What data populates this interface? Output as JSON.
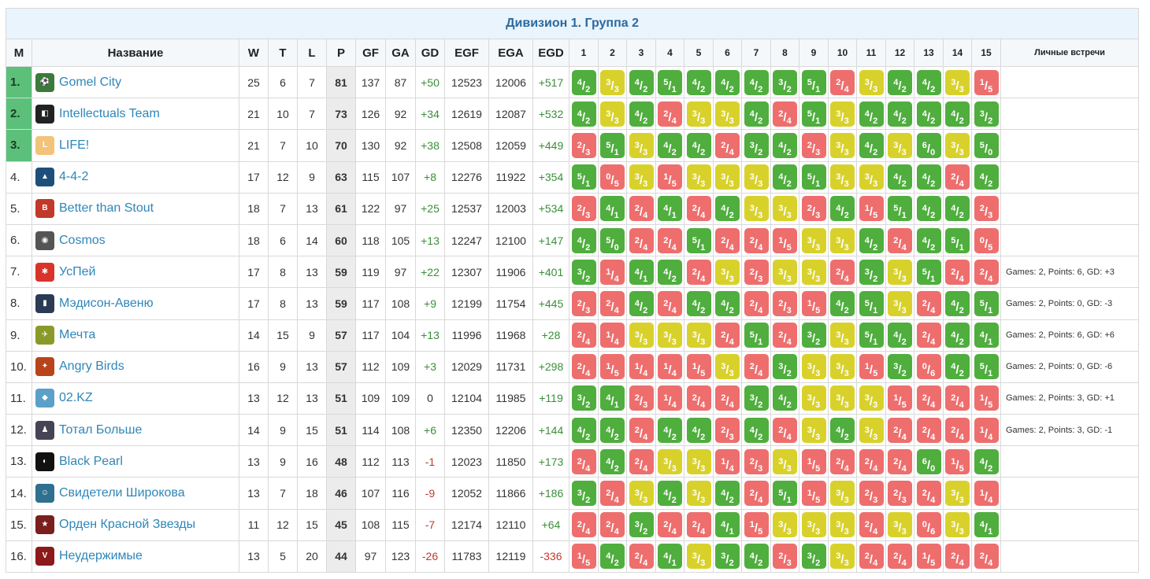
{
  "title": "Дивизион 1. Группа 2",
  "headers": {
    "m": "М",
    "name": "Название",
    "w": "W",
    "t": "T",
    "l": "L",
    "p": "P",
    "gf": "GF",
    "ga": "GA",
    "gd": "GD",
    "egf": "EGF",
    "ega": "EGA",
    "egd": "EGD",
    "rounds": [
      "1",
      "2",
      "3",
      "4",
      "5",
      "6",
      "7",
      "8",
      "9",
      "10",
      "11",
      "12",
      "13",
      "14",
      "15"
    ],
    "h2h": "Личные встречи"
  },
  "colors": {
    "win": "#4fae3e",
    "draw": "#d9d12b",
    "loss": "#ee6e6e",
    "top": "#5cc07a",
    "link": "#2f86b8"
  },
  "rows": [
    {
      "pos": "1.",
      "name": "Gomel City",
      "icon": "gomel-city-logo",
      "w": "25",
      "t": "6",
      "l": "7",
      "p": "81",
      "gf": "137",
      "ga": "87",
      "gd": "+50",
      "egf": "12523",
      "ega": "12006",
      "egd": "+517",
      "results": [
        "4/2",
        "3/3",
        "4/2",
        "5/1",
        "4/2",
        "4/2",
        "4/2",
        "3/2",
        "5/1",
        "2/4",
        "3/3",
        "4/2",
        "4/2",
        "3/3",
        "1/5"
      ],
      "h2h": ""
    },
    {
      "pos": "2.",
      "name": "Intellectuals Team",
      "icon": "intellectuals-team-logo",
      "w": "21",
      "t": "10",
      "l": "7",
      "p": "73",
      "gf": "126",
      "ga": "92",
      "gd": "+34",
      "egf": "12619",
      "ega": "12087",
      "egd": "+532",
      "results": [
        "4/2",
        "3/3",
        "4/2",
        "2/4",
        "3/3",
        "3/3",
        "4/2",
        "2/4",
        "5/1",
        "3/3",
        "4/2",
        "4/2",
        "4/2",
        "4/2",
        "3/2"
      ],
      "h2h": ""
    },
    {
      "pos": "3.",
      "name": "LIFE!",
      "icon": "life-logo",
      "w": "21",
      "t": "7",
      "l": "10",
      "p": "70",
      "gf": "130",
      "ga": "92",
      "gd": "+38",
      "egf": "12508",
      "ega": "12059",
      "egd": "+449",
      "results": [
        "2/3",
        "5/1",
        "3/3",
        "4/2",
        "4/2",
        "2/4",
        "3/2",
        "4/2",
        "2/3",
        "3/3",
        "4/2",
        "3/3",
        "6/0",
        "3/3",
        "5/0"
      ],
      "h2h": ""
    },
    {
      "pos": "4.",
      "name": "4-4-2",
      "icon": "442-logo",
      "w": "17",
      "t": "12",
      "l": "9",
      "p": "63",
      "gf": "115",
      "ga": "107",
      "gd": "+8",
      "egf": "12276",
      "ega": "11922",
      "egd": "+354",
      "results": [
        "5/1",
        "0/5",
        "3/3",
        "1/5",
        "3/3",
        "3/3",
        "3/3",
        "4/2",
        "5/1",
        "3/3",
        "3/3",
        "4/2",
        "4/2",
        "2/4",
        "4/2"
      ],
      "h2h": ""
    },
    {
      "pos": "5.",
      "name": "Better than Stout",
      "icon": "better-than-stout-logo",
      "w": "18",
      "t": "7",
      "l": "13",
      "p": "61",
      "gf": "122",
      "ga": "97",
      "gd": "+25",
      "egf": "12537",
      "ega": "12003",
      "egd": "+534",
      "results": [
        "2/3",
        "4/1",
        "2/4",
        "4/1",
        "2/4",
        "4/2",
        "3/3",
        "3/3",
        "2/3",
        "4/2",
        "1/5",
        "5/1",
        "4/2",
        "4/2",
        "2/3"
      ],
      "h2h": ""
    },
    {
      "pos": "6.",
      "name": "Cosmos",
      "icon": "cosmos-logo",
      "w": "18",
      "t": "6",
      "l": "14",
      "p": "60",
      "gf": "118",
      "ga": "105",
      "gd": "+13",
      "egf": "12247",
      "ega": "12100",
      "egd": "+147",
      "results": [
        "4/2",
        "5/0",
        "2/4",
        "2/4",
        "5/1",
        "2/4",
        "2/4",
        "1/5",
        "3/3",
        "3/3",
        "4/2",
        "2/4",
        "4/2",
        "5/1",
        "0/5"
      ],
      "h2h": ""
    },
    {
      "pos": "7.",
      "name": "УсПей",
      "icon": "uspey-logo",
      "w": "17",
      "t": "8",
      "l": "13",
      "p": "59",
      "gf": "119",
      "ga": "97",
      "gd": "+22",
      "egf": "12307",
      "ega": "11906",
      "egd": "+401",
      "results": [
        "3/2",
        "1/4",
        "4/1",
        "4/2",
        "2/4",
        "3/3",
        "2/3",
        "3/3",
        "3/3",
        "2/4",
        "3/2",
        "3/3",
        "5/1",
        "2/4",
        "2/4"
      ],
      "h2h": "Games: 2, Points: 6, GD: +3"
    },
    {
      "pos": "8.",
      "name": "Мэдисон-Авеню",
      "icon": "madison-avenue-logo",
      "w": "17",
      "t": "8",
      "l": "13",
      "p": "59",
      "gf": "117",
      "ga": "108",
      "gd": "+9",
      "egf": "12199",
      "ega": "11754",
      "egd": "+445",
      "results": [
        "2/3",
        "2/4",
        "4/2",
        "2/4",
        "4/2",
        "4/2",
        "2/4",
        "2/3",
        "1/5",
        "4/2",
        "5/1",
        "3/3",
        "2/4",
        "4/2",
        "5/1"
      ],
      "h2h": "Games: 2, Points: 0, GD: -3"
    },
    {
      "pos": "9.",
      "name": "Мечта",
      "icon": "mechta-logo",
      "w": "14",
      "t": "15",
      "l": "9",
      "p": "57",
      "gf": "117",
      "ga": "104",
      "gd": "+13",
      "egf": "11996",
      "ega": "11968",
      "egd": "+28",
      "results": [
        "2/4",
        "1/4",
        "3/3",
        "3/3",
        "3/3",
        "2/4",
        "5/1",
        "2/4",
        "3/2",
        "3/3",
        "5/1",
        "4/2",
        "2/4",
        "4/2",
        "4/1"
      ],
      "h2h": "Games: 2, Points: 6, GD: +6"
    },
    {
      "pos": "10.",
      "name": "Angry Birds",
      "icon": "angry-birds-logo",
      "w": "16",
      "t": "9",
      "l": "13",
      "p": "57",
      "gf": "112",
      "ga": "109",
      "gd": "+3",
      "egf": "12029",
      "ega": "11731",
      "egd": "+298",
      "results": [
        "2/4",
        "1/5",
        "1/4",
        "1/4",
        "1/5",
        "3/3",
        "2/4",
        "3/2",
        "3/3",
        "3/3",
        "1/5",
        "3/2",
        "0/6",
        "4/2",
        "5/1"
      ],
      "h2h": "Games: 2, Points: 0, GD: -6"
    },
    {
      "pos": "11.",
      "name": "02.KZ",
      "icon": "02kz-logo",
      "w": "13",
      "t": "12",
      "l": "13",
      "p": "51",
      "gf": "109",
      "ga": "109",
      "gd": "0",
      "egf": "12104",
      "ega": "11985",
      "egd": "+119",
      "results": [
        "3/2",
        "4/1",
        "2/3",
        "1/4",
        "2/4",
        "2/4",
        "3/2",
        "4/2",
        "3/3",
        "3/3",
        "3/3",
        "1/5",
        "2/4",
        "2/4",
        "1/5"
      ],
      "h2h": "Games: 2, Points: 3, GD: +1"
    },
    {
      "pos": "12.",
      "name": "Тотал Больше",
      "icon": "total-bolshe-logo",
      "w": "14",
      "t": "9",
      "l": "15",
      "p": "51",
      "gf": "114",
      "ga": "108",
      "gd": "+6",
      "egf": "12350",
      "ega": "12206",
      "egd": "+144",
      "results": [
        "4/2",
        "4/2",
        "2/4",
        "4/2",
        "4/2",
        "2/3",
        "4/2",
        "2/4",
        "3/3",
        "4/2",
        "3/3",
        "2/4",
        "2/4",
        "2/4",
        "1/4"
      ],
      "h2h": "Games: 2, Points: 3, GD: -1"
    },
    {
      "pos": "13.",
      "name": "Black Pearl",
      "icon": "black-pearl-logo",
      "w": "13",
      "t": "9",
      "l": "16",
      "p": "48",
      "gf": "112",
      "ga": "113",
      "gd": "-1",
      "egf": "12023",
      "ega": "11850",
      "egd": "+173",
      "results": [
        "2/4",
        "4/2",
        "2/4",
        "3/3",
        "3/3",
        "1/4",
        "2/3",
        "3/3",
        "1/5",
        "2/4",
        "2/4",
        "2/4",
        "6/0",
        "1/5",
        "4/2"
      ],
      "h2h": ""
    },
    {
      "pos": "14.",
      "name": "Свидетели Широкова",
      "icon": "svideteli-shirokova-logo",
      "w": "13",
      "t": "7",
      "l": "18",
      "p": "46",
      "gf": "107",
      "ga": "116",
      "gd": "-9",
      "egf": "12052",
      "ega": "11866",
      "egd": "+186",
      "results": [
        "3/2",
        "2/4",
        "3/3",
        "4/2",
        "3/3",
        "4/2",
        "2/4",
        "5/1",
        "1/5",
        "3/3",
        "2/3",
        "2/3",
        "2/4",
        "3/3",
        "1/4"
      ],
      "h2h": ""
    },
    {
      "pos": "15.",
      "name": "Орден Красной Звезды",
      "icon": "orden-krasnoy-zvezdy-logo",
      "w": "11",
      "t": "12",
      "l": "15",
      "p": "45",
      "gf": "108",
      "ga": "115",
      "gd": "-7",
      "egf": "12174",
      "ega": "12110",
      "egd": "+64",
      "results": [
        "2/4",
        "2/4",
        "3/2",
        "2/4",
        "2/4",
        "4/1",
        "1/5",
        "3/3",
        "3/3",
        "3/3",
        "2/4",
        "3/3",
        "0/6",
        "3/3",
        "4/1"
      ],
      "h2h": ""
    },
    {
      "pos": "16.",
      "name": "Неудержимые",
      "icon": "neuderzhimye-logo",
      "w": "13",
      "t": "5",
      "l": "20",
      "p": "44",
      "gf": "97",
      "ga": "123",
      "gd": "-26",
      "egf": "11783",
      "ega": "12119",
      "egd": "-336",
      "results": [
        "1/5",
        "4/2",
        "2/4",
        "4/1",
        "3/3",
        "3/2",
        "4/2",
        "2/3",
        "3/2",
        "3/3",
        "2/4",
        "2/4",
        "1/5",
        "2/4",
        "2/4"
      ],
      "h2h": ""
    }
  ]
}
